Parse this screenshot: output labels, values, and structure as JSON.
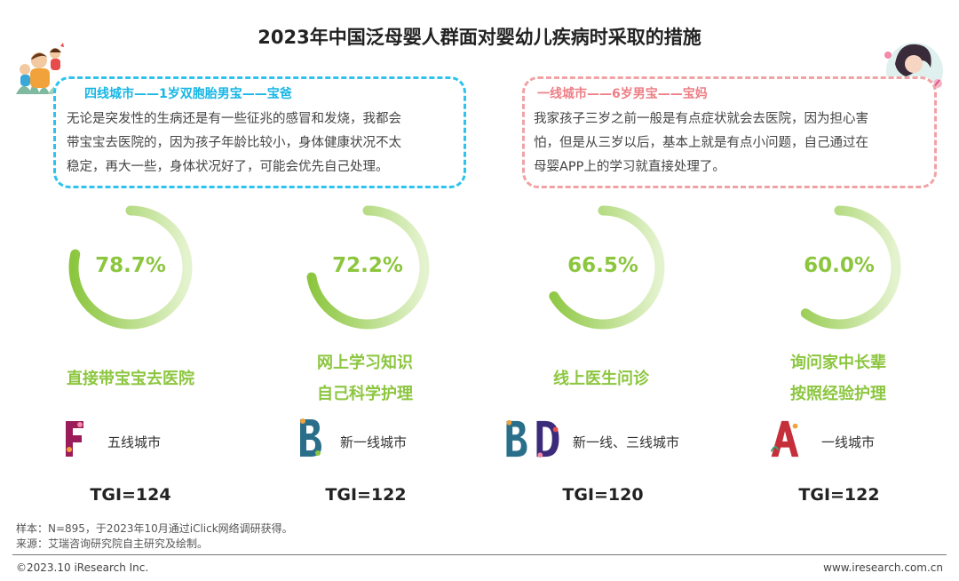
{
  "title": "2023年中国泛母婴人群面对婴幼儿疾病时采取的措施",
  "quotes": [
    {
      "header": "四线城市——1岁双胞胎男宝——宝爸",
      "lines": [
        "无论是突发性的生病还是有一些征兆的感冒和发烧，我都会",
        "带宝宝去医院的，因为孩子年龄比较小，身体健康状况不太",
        "稳定，再大一些，身体状况好了，可能会优先自己处理。"
      ],
      "color": "#2ec3ee"
    },
    {
      "header": "一线城市——6岁男宝——宝妈",
      "lines": [
        "我家孩子三岁之前一般是有点症状就会去医院，因为担心害",
        "怕，但是从三岁以后，基本上就是有点小问题，自己通过在",
        "母婴APP上的学习就直接处理了。"
      ],
      "color": "#f1a2a4"
    }
  ],
  "chart_data": {
    "type": "donut-gauges",
    "items": [
      {
        "label": "78.7%",
        "value": 78.7,
        "measure_lines": [
          "直接带宝宝去医院"
        ],
        "tier_letters": [
          "F"
        ],
        "tier_label": "五线城市",
        "tgi": "TGI=124"
      },
      {
        "label": "72.2%",
        "value": 72.2,
        "measure_lines": [
          "网上学习知识",
          "自己科学护理"
        ],
        "tier_letters": [
          "B"
        ],
        "tier_label": "新一线城市",
        "tgi": "TGI=122"
      },
      {
        "label": "66.5%",
        "value": 66.5,
        "measure_lines": [
          "线上医生问诊"
        ],
        "tier_letters": [
          "B",
          "D"
        ],
        "tier_label": "新一线、三线城市",
        "tgi": "TGI=120"
      },
      {
        "label": "60.0%",
        "value": 60.0,
        "measure_lines": [
          "询问家中长辈",
          "按照经验护理"
        ],
        "tier_letters": [
          "A"
        ],
        "tier_label": "一线城市",
        "tgi": "TGI=122"
      }
    ],
    "colors": {
      "arc": "#8cc63f",
      "arc_light": "#e4f3cf"
    }
  },
  "notes": {
    "sample": "样本：N=895，于2023年10月通过iClick网络调研获得。",
    "source": "来源：艾瑞咨询研究院自主研究及绘制。"
  },
  "footer": {
    "copyright": "©2023.10 iResearch Inc.",
    "website": "www.iresearch.com.cn"
  }
}
